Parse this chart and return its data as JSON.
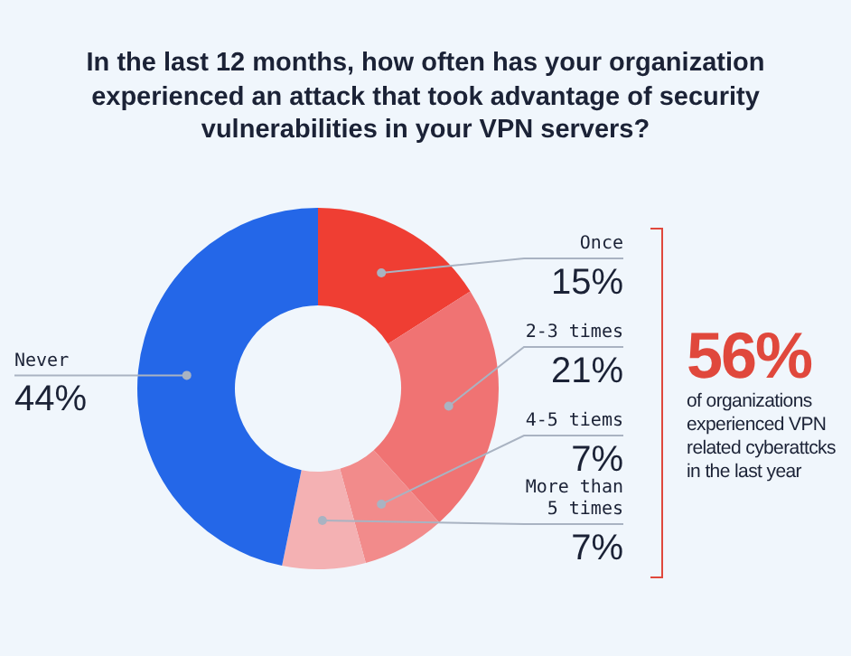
{
  "chart_data": {
    "type": "donut",
    "title": "In the last 12 months, how often has your organization experienced an attack that took advantage of security vulnerabilities in your VPN servers?",
    "categories": [
      "Once",
      "2-3 times",
      "4-5 tiems",
      "More than 5 times",
      "Never"
    ],
    "values": [
      15,
      21,
      7,
      7,
      44
    ],
    "value_labels": [
      "15%",
      "21%",
      "7%",
      "7%",
      "44%"
    ],
    "colors": [
      "#ef3e33",
      "#f07373",
      "#f28b8b",
      "#f4b1b3",
      "#2467e8"
    ],
    "annotations": [
      "56%",
      "of organizations experienced VPN related cyberattcks in the last year"
    ]
  }
}
